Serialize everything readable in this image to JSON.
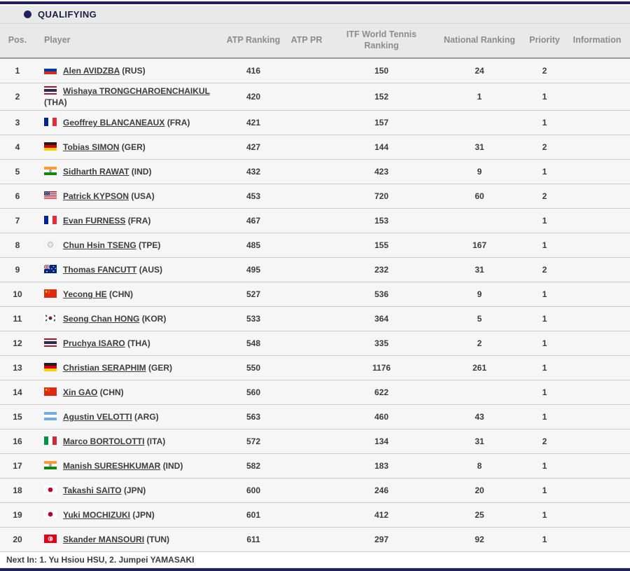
{
  "colors": {
    "accent_navy": "#21215c",
    "header_bg": "#e9e9e9",
    "row_bg": "#f6f6f6",
    "divider": "#cccccc",
    "text": "#3c3c3c",
    "header_text": "#8c8c8c"
  },
  "section": {
    "title": "QUALIFYING"
  },
  "table": {
    "columns": [
      "Pos.",
      "Player",
      "ATP Ranking",
      "ATP PR",
      "ITF World Tennis Ranking",
      "National Ranking",
      "Priority",
      "Information"
    ],
    "rows": [
      {
        "pos": "1",
        "flag": "rus",
        "name": "Alen AVIDZBA",
        "country": "(RUS)",
        "atp": "416",
        "atp_pr": "",
        "itf": "150",
        "national": "24",
        "priority": "2",
        "information": ""
      },
      {
        "pos": "2",
        "flag": "tha",
        "name": "Wishaya TRONGCHAROENCHAIKUL",
        "country": "(THA)",
        "atp": "420",
        "atp_pr": "",
        "itf": "152",
        "national": "1",
        "priority": "1",
        "information": ""
      },
      {
        "pos": "3",
        "flag": "fra",
        "name": "Geoffrey BLANCANEAUX",
        "country": "(FRA)",
        "atp": "421",
        "atp_pr": "",
        "itf": "157",
        "national": "",
        "priority": "1",
        "information": ""
      },
      {
        "pos": "4",
        "flag": "ger",
        "name": "Tobias SIMON",
        "country": "(GER)",
        "atp": "427",
        "atp_pr": "",
        "itf": "144",
        "national": "31",
        "priority": "2",
        "information": ""
      },
      {
        "pos": "5",
        "flag": "ind",
        "name": "Sidharth RAWAT",
        "country": "(IND)",
        "atp": "432",
        "atp_pr": "",
        "itf": "423",
        "national": "9",
        "priority": "1",
        "information": ""
      },
      {
        "pos": "6",
        "flag": "usa",
        "name": "Patrick KYPSON",
        "country": "(USA)",
        "atp": "453",
        "atp_pr": "",
        "itf": "720",
        "national": "60",
        "priority": "2",
        "information": ""
      },
      {
        "pos": "7",
        "flag": "fra",
        "name": "Evan FURNESS",
        "country": "(FRA)",
        "atp": "467",
        "atp_pr": "",
        "itf": "153",
        "national": "",
        "priority": "1",
        "information": ""
      },
      {
        "pos": "8",
        "flag": "tpe",
        "name": "Chun Hsin TSENG",
        "country": "(TPE)",
        "atp": "485",
        "atp_pr": "",
        "itf": "155",
        "national": "167",
        "priority": "1",
        "information": ""
      },
      {
        "pos": "9",
        "flag": "aus",
        "name": "Thomas FANCUTT",
        "country": "(AUS)",
        "atp": "495",
        "atp_pr": "",
        "itf": "232",
        "national": "31",
        "priority": "2",
        "information": ""
      },
      {
        "pos": "10",
        "flag": "chn",
        "name": "Yecong HE",
        "country": "(CHN)",
        "atp": "527",
        "atp_pr": "",
        "itf": "536",
        "national": "9",
        "priority": "1",
        "information": ""
      },
      {
        "pos": "11",
        "flag": "kor",
        "name": "Seong Chan HONG",
        "country": "(KOR)",
        "atp": "533",
        "atp_pr": "",
        "itf": "364",
        "national": "5",
        "priority": "1",
        "information": ""
      },
      {
        "pos": "12",
        "flag": "tha",
        "name": "Pruchya ISARO",
        "country": "(THA)",
        "atp": "548",
        "atp_pr": "",
        "itf": "335",
        "national": "2",
        "priority": "1",
        "information": ""
      },
      {
        "pos": "13",
        "flag": "ger",
        "name": "Christian SERAPHIM",
        "country": "(GER)",
        "atp": "550",
        "atp_pr": "",
        "itf": "1176",
        "national": "261",
        "priority": "1",
        "information": ""
      },
      {
        "pos": "14",
        "flag": "chn",
        "name": "Xin GAO",
        "country": "(CHN)",
        "atp": "560",
        "atp_pr": "",
        "itf": "622",
        "national": "",
        "priority": "1",
        "information": ""
      },
      {
        "pos": "15",
        "flag": "arg",
        "name": "Agustin VELOTTI",
        "country": "(ARG)",
        "atp": "563",
        "atp_pr": "",
        "itf": "460",
        "national": "43",
        "priority": "1",
        "information": ""
      },
      {
        "pos": "16",
        "flag": "ita",
        "name": "Marco BORTOLOTTI",
        "country": "(ITA)",
        "atp": "572",
        "atp_pr": "",
        "itf": "134",
        "national": "31",
        "priority": "2",
        "information": ""
      },
      {
        "pos": "17",
        "flag": "ind",
        "name": "Manish SURESHKUMAR",
        "country": "(IND)",
        "atp": "582",
        "atp_pr": "",
        "itf": "183",
        "national": "8",
        "priority": "1",
        "information": ""
      },
      {
        "pos": "18",
        "flag": "jpn",
        "name": "Takashi SAITO",
        "country": "(JPN)",
        "atp": "600",
        "atp_pr": "",
        "itf": "246",
        "national": "20",
        "priority": "1",
        "information": ""
      },
      {
        "pos": "19",
        "flag": "jpn",
        "name": "Yuki MOCHIZUKI",
        "country": "(JPN)",
        "atp": "601",
        "atp_pr": "",
        "itf": "412",
        "national": "25",
        "priority": "1",
        "information": ""
      },
      {
        "pos": "20",
        "flag": "tun",
        "name": "Skander MANSOURI",
        "country": "(TUN)",
        "atp": "611",
        "atp_pr": "",
        "itf": "297",
        "national": "92",
        "priority": "1",
        "information": ""
      }
    ]
  },
  "footer": {
    "next_in": "Next In: 1. Yu Hsiou HSU, 2. Jumpei YAMASAKI"
  }
}
